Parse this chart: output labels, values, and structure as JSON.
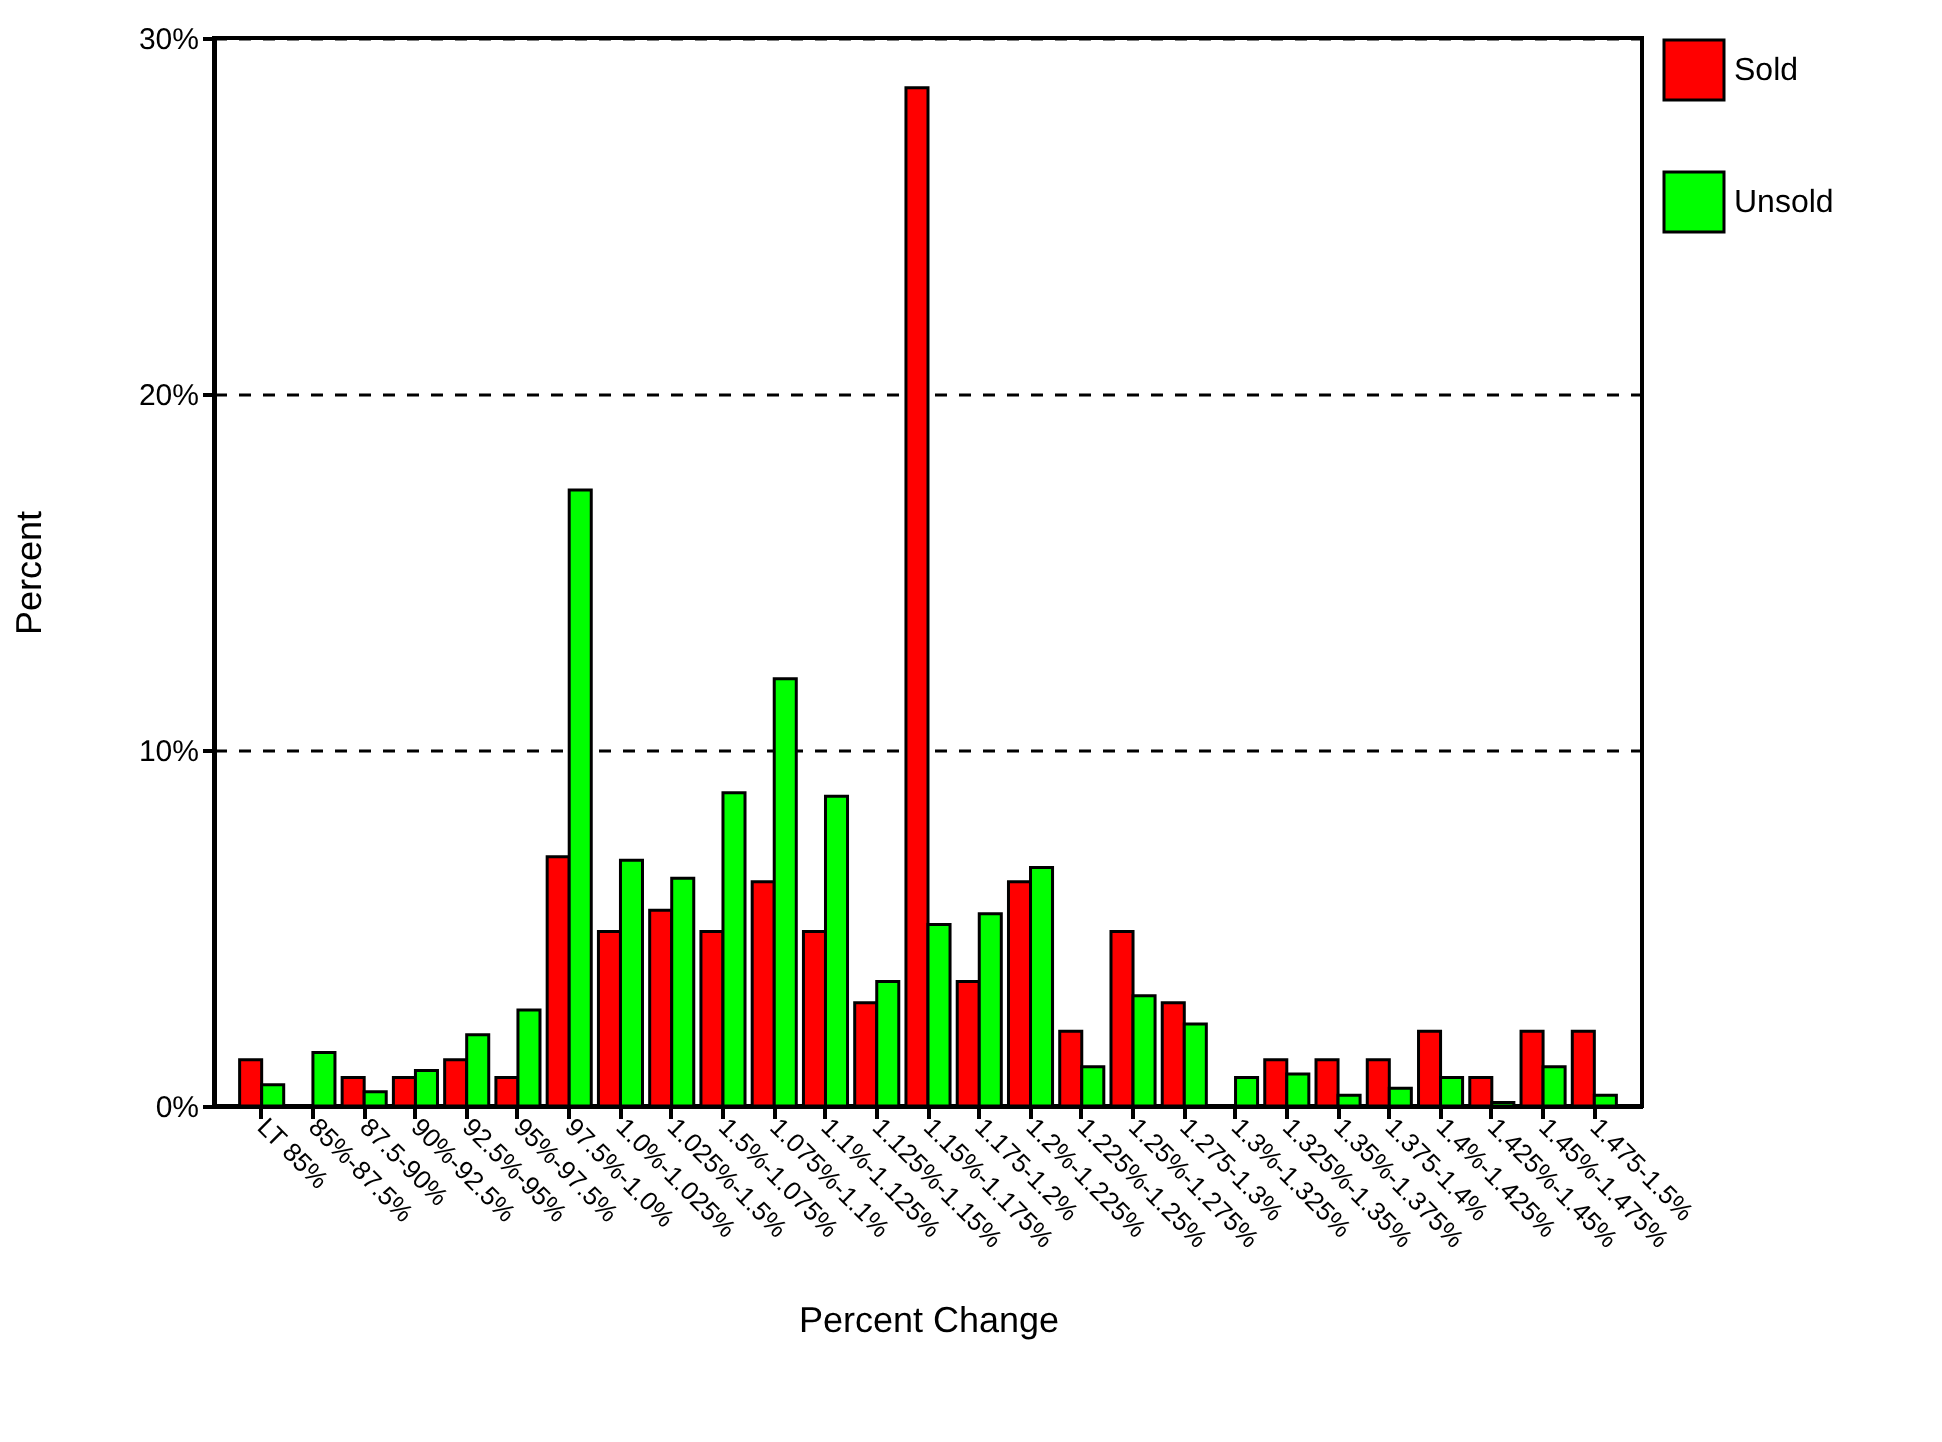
{
  "chart_data": {
    "type": "bar",
    "xlabel": "Percent Change",
    "ylabel": "Percent",
    "categories": [
      "LT 85%",
      "85%-87.5%",
      "87.5-90%",
      "90%-92.5%",
      "92.5%-95%",
      "95%-97.5%",
      "97.5%-1.0%",
      "1.0%-1.025%",
      "1.025%-1.5%",
      "1.5%-1.075%",
      "1.075%-1.1%",
      "1.1%-1.125%",
      "1.125%-1.15%",
      "1.15%-1.175%",
      "1.175-1.2%",
      "1.2%-1.225%",
      "1.225%-1.25%",
      "1.25%-1.275%",
      "1.275-1.3%",
      "1.3%-1.325%",
      "1.325%-1.35%",
      "1.35%-1.375%",
      "1.375-1.4%",
      "1.4%-1.425%",
      "1.425%-1.45%",
      "1.45%-1.475%",
      "1.475-1.5%"
    ],
    "series": [
      {
        "name": "Sold",
        "color": "#ff0000",
        "values": [
          1.3,
          null,
          0.8,
          0.8,
          1.3,
          0.8,
          7.0,
          4.9,
          5.5,
          4.9,
          6.3,
          4.9,
          2.9,
          28.6,
          3.5,
          6.3,
          2.1,
          4.9,
          2.9,
          null,
          1.3,
          1.3,
          1.3,
          2.1,
          0.8,
          2.1,
          2.1
        ]
      },
      {
        "name": "Unsold",
        "color": "#00ff00",
        "values": [
          0.6,
          1.5,
          0.4,
          1.0,
          2.0,
          2.7,
          17.3,
          6.9,
          6.4,
          8.8,
          12.0,
          8.7,
          3.5,
          5.1,
          5.4,
          6.7,
          1.1,
          3.1,
          2.3,
          0.8,
          0.9,
          0.3,
          0.5,
          0.8,
          0.1,
          1.1,
          0.3
        ]
      }
    ],
    "ylim": [
      0,
      30
    ],
    "yticks": [
      {
        "value": 0,
        "label": "0%"
      },
      {
        "value": 10,
        "label": "10%"
      },
      {
        "value": 20,
        "label": "20%"
      },
      {
        "value": 30,
        "label": "30%"
      }
    ],
    "grid": "y",
    "legend": "right"
  }
}
